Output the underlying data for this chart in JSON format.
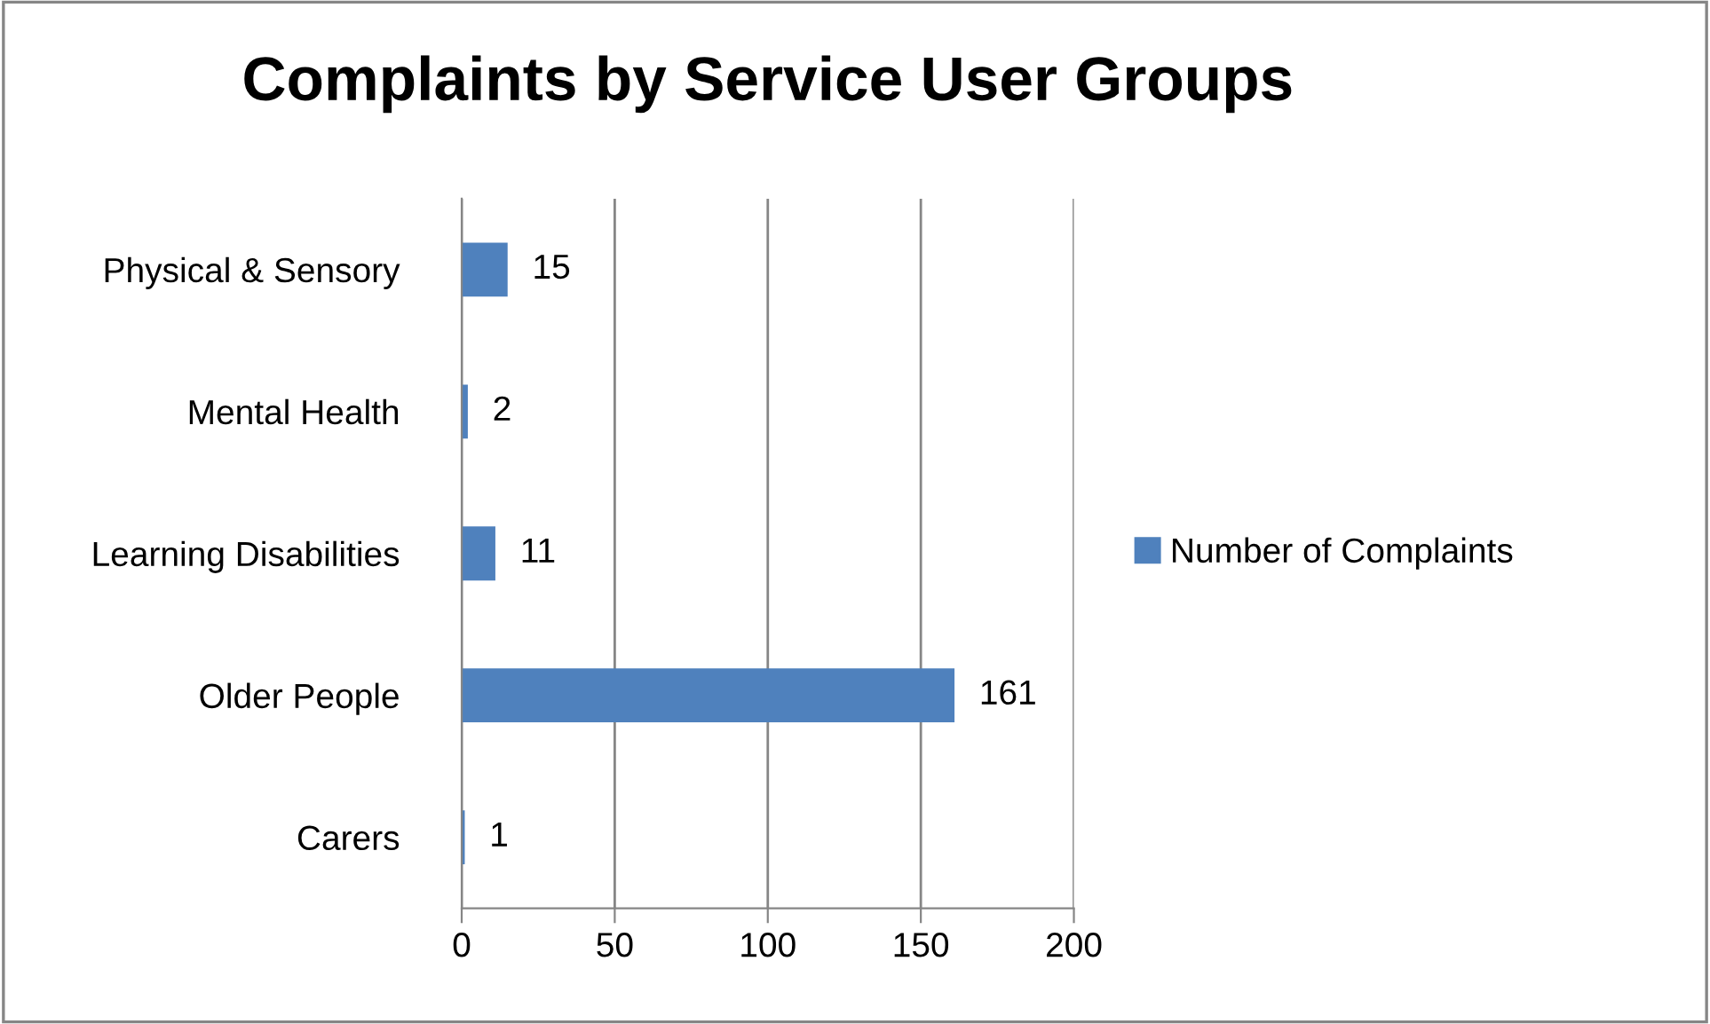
{
  "chart_data": {
    "type": "bar",
    "orientation": "horizontal",
    "title": "Complaints by Service User Groups",
    "categories": [
      "Physical & Sensory",
      "Mental Health",
      "Learning Disabilities",
      "Older People",
      "Carers"
    ],
    "series": [
      {
        "name": "Number of Complaints",
        "color": "#4f81bd",
        "values": [
          15,
          2,
          11,
          161,
          1
        ]
      }
    ],
    "xlim": [
      0,
      200
    ],
    "xticks": [
      0,
      50,
      100,
      150,
      200
    ],
    "grid": "x",
    "legend": "right",
    "data_labels": true
  }
}
